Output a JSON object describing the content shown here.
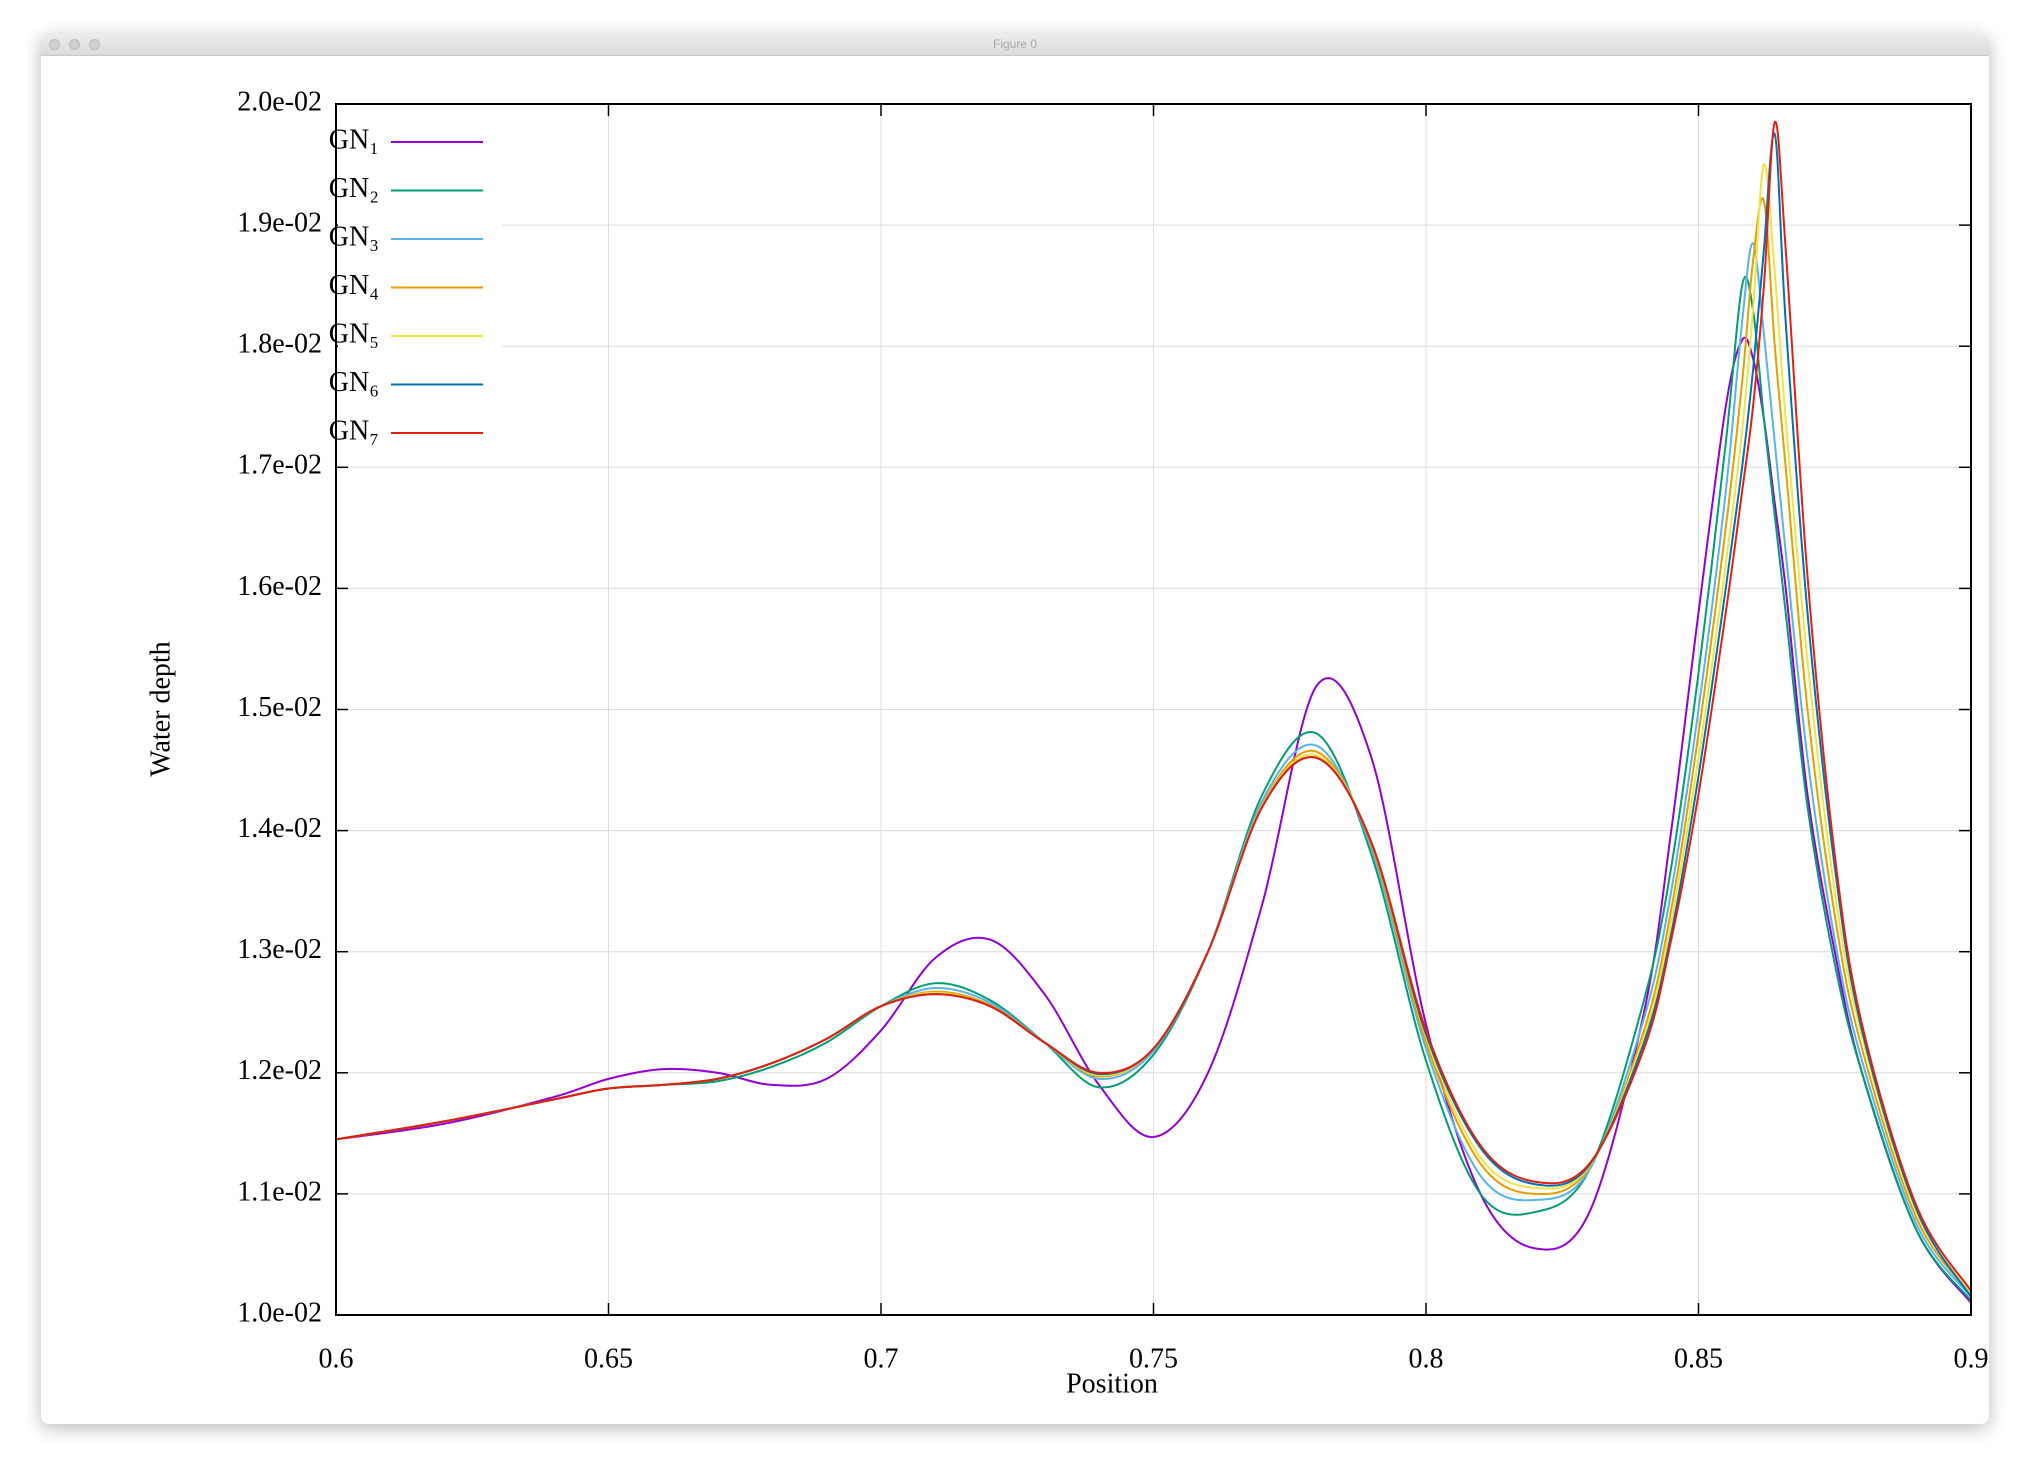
{
  "window_title": "Figure 0",
  "chart_data": {
    "type": "line",
    "x_label": "Position",
    "y_label": "Water depth",
    "x": [
      0.6,
      0.62,
      0.64,
      0.65,
      0.66,
      0.67,
      0.68,
      0.69,
      0.7,
      0.71,
      0.72,
      0.73,
      0.74,
      0.75,
      0.76,
      0.77,
      0.78,
      0.79,
      0.8,
      0.81,
      0.82,
      0.83,
      0.84,
      0.845,
      0.85,
      0.855,
      0.858,
      0.86,
      0.862,
      0.864,
      0.866,
      0.87,
      0.875,
      0.88,
      0.89,
      0.9
    ],
    "series": [
      {
        "name": "GN₁",
        "color": "#9400d3",
        "values": [
          0.01145,
          0.01158,
          0.0118,
          0.01195,
          0.01203,
          0.012,
          0.0119,
          0.01195,
          0.01235,
          0.01295,
          0.0131,
          0.01265,
          0.0119,
          0.01147,
          0.012,
          0.0134,
          0.0152,
          0.0146,
          0.0124,
          0.011,
          0.01055,
          0.01085,
          0.0125,
          0.014,
          0.0158,
          0.0175,
          0.01805,
          0.0179,
          0.0174,
          0.0167,
          0.016,
          0.0143,
          0.013,
          0.012,
          0.0107,
          0.0101
        ]
      },
      {
        "name": "GN₂",
        "color": "#009e73",
        "values": [
          0.01145,
          0.0116,
          0.01178,
          0.01187,
          0.0119,
          0.01193,
          0.01205,
          0.01225,
          0.01255,
          0.01274,
          0.0126,
          0.01225,
          0.01188,
          0.01215,
          0.013,
          0.0143,
          0.0148,
          0.0138,
          0.0121,
          0.011,
          0.01085,
          0.0112,
          0.0126,
          0.0137,
          0.0153,
          0.0172,
          0.0185,
          0.0183,
          0.0174,
          0.0166,
          0.0158,
          0.0142,
          0.0129,
          0.012,
          0.0107,
          0.01012
        ]
      },
      {
        "name": "GN₃",
        "color": "#56b4e9",
        "values": [
          0.01145,
          0.0116,
          0.01178,
          0.01187,
          0.0119,
          0.01195,
          0.01208,
          0.01228,
          0.01255,
          0.0127,
          0.01258,
          0.01225,
          0.01195,
          0.01218,
          0.013,
          0.01425,
          0.0147,
          0.01385,
          0.0122,
          0.01115,
          0.01095,
          0.0112,
          0.01245,
          0.0135,
          0.015,
          0.0168,
          0.0182,
          0.01885,
          0.0181,
          0.0172,
          0.0163,
          0.0146,
          0.0131,
          0.0121,
          0.01075,
          0.01015
        ]
      },
      {
        "name": "GN₄",
        "color": "#e69f00",
        "values": [
          0.01145,
          0.0116,
          0.01178,
          0.01187,
          0.0119,
          0.01195,
          0.01208,
          0.01228,
          0.01255,
          0.01267,
          0.01256,
          0.01225,
          0.01197,
          0.0122,
          0.013,
          0.01422,
          0.01465,
          0.01388,
          0.01225,
          0.01125,
          0.011,
          0.01122,
          0.01235,
          0.01335,
          0.0148,
          0.0165,
          0.0177,
          0.0187,
          0.0192,
          0.018,
          0.017,
          0.015,
          0.0133,
          0.0122,
          0.0108,
          0.01017
        ]
      },
      {
        "name": "GN₅",
        "color": "#f0e442",
        "values": [
          0.01145,
          0.0116,
          0.01178,
          0.01187,
          0.0119,
          0.01195,
          0.01208,
          0.01228,
          0.01255,
          0.01266,
          0.01255,
          0.01225,
          0.01198,
          0.0122,
          0.013,
          0.01421,
          0.01462,
          0.0139,
          0.0123,
          0.0113,
          0.01105,
          0.01123,
          0.0123,
          0.01325,
          0.0146,
          0.0162,
          0.0173,
          0.0183,
          0.0195,
          0.0186,
          0.0174,
          0.0154,
          0.0135,
          0.0123,
          0.01085,
          0.01018
        ]
      },
      {
        "name": "GN₆",
        "color": "#0072b2",
        "values": [
          0.01145,
          0.0116,
          0.01178,
          0.01187,
          0.0119,
          0.01195,
          0.01208,
          0.01228,
          0.01255,
          0.01265,
          0.01255,
          0.01225,
          0.01199,
          0.0122,
          0.013,
          0.0142,
          0.0146,
          0.0139,
          0.01232,
          0.01138,
          0.01108,
          0.01124,
          0.01225,
          0.01315,
          0.01445,
          0.016,
          0.017,
          0.0178,
          0.0188,
          0.01975,
          0.0182,
          0.0158,
          0.0137,
          0.01235,
          0.01087,
          0.01015
        ]
      },
      {
        "name": "GN₇",
        "color": "#e51e10",
        "values": [
          0.01145,
          0.0116,
          0.01178,
          0.01187,
          0.0119,
          0.01195,
          0.01208,
          0.01228,
          0.01255,
          0.01265,
          0.01255,
          0.01225,
          0.012,
          0.0122,
          0.013,
          0.0142,
          0.0146,
          0.0139,
          0.01235,
          0.0114,
          0.0111,
          0.01125,
          0.0122,
          0.0131,
          0.0143,
          0.0158,
          0.0168,
          0.0175,
          0.0185,
          0.01985,
          0.0188,
          0.0161,
          0.0138,
          0.0124,
          0.0109,
          0.0102
        ]
      }
    ],
    "xlim": [
      0.6,
      0.9
    ],
    "xticks": [
      0.6,
      0.65,
      0.7,
      0.75,
      0.8,
      0.85,
      0.9
    ],
    "ylim": [
      0.01,
      0.02
    ],
    "yticks": [
      {
        "value": 0.01,
        "label": "1.0e-02"
      },
      {
        "value": 0.011,
        "label": "1.1e-02"
      },
      {
        "value": 0.012,
        "label": "1.2e-02"
      },
      {
        "value": 0.013,
        "label": "1.3e-02"
      },
      {
        "value": 0.014,
        "label": "1.4e-02"
      },
      {
        "value": 0.015,
        "label": "1.5e-02"
      },
      {
        "value": 0.016,
        "label": "1.6e-02"
      },
      {
        "value": 0.017,
        "label": "1.7e-02"
      },
      {
        "value": 0.018,
        "label": "1.8e-02"
      },
      {
        "value": 0.019,
        "label": "1.9e-02"
      },
      {
        "value": 0.02,
        "label": "2.0e-02"
      }
    ],
    "grid": true,
    "legend": "top-left"
  }
}
